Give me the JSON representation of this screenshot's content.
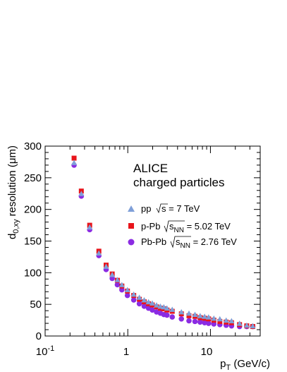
{
  "chart_data": {
    "type": "scatter",
    "xlabel": "p_T (GeV/c)",
    "ylabel": "d_0,xy resolution (μm)",
    "x_scale": "log",
    "xlim": [
      0.1,
      40
    ],
    "ylim": [
      0,
      300
    ],
    "x_ticks": [
      "10",
      "1",
      "10"
    ],
    "y_ticks": [
      "0",
      "50",
      "100",
      "150",
      "200",
      "250",
      "300"
    ],
    "annotation_title": "ALICE",
    "annotation_subtitle": "charged particles",
    "series": [
      {
        "name": "pp √s = 7 TeV",
        "color": "#7f9fd8",
        "marker": "triangle",
        "points": [
          [
            0.224,
            274
          ],
          [
            0.274,
            225
          ],
          [
            0.346,
            172
          ],
          [
            0.447,
            131
          ],
          [
            0.547,
            110
          ],
          [
            0.648,
            97
          ],
          [
            0.748,
            89
          ],
          [
            0.848,
            81
          ],
          [
            0.99,
            73
          ],
          [
            1.18,
            66
          ],
          [
            1.38,
            61
          ],
          [
            1.58,
            57
          ],
          [
            1.78,
            54
          ],
          [
            1.98,
            52
          ],
          [
            2.23,
            49
          ],
          [
            2.48,
            47
          ],
          [
            2.73,
            46
          ],
          [
            2.98,
            44
          ],
          [
            3.45,
            42
          ],
          [
            4.45,
            38
          ],
          [
            5.5,
            36
          ],
          [
            6.5,
            34
          ],
          [
            7.5,
            32
          ],
          [
            8.5,
            31
          ],
          [
            9.5,
            30
          ],
          [
            11.0,
            28
          ],
          [
            13.0,
            27
          ],
          [
            15.5,
            25
          ],
          [
            18.0,
            24
          ],
          [
            22.5,
            20
          ],
          [
            27.5,
            17
          ],
          [
            32.5,
            16
          ]
        ]
      },
      {
        "name": "p-Pb √s_NN = 5.02 TeV",
        "color": "#e8141b",
        "marker": "square",
        "points": [
          [
            0.224,
            281
          ],
          [
            0.274,
            229
          ],
          [
            0.346,
            175
          ],
          [
            0.447,
            134
          ],
          [
            0.547,
            112
          ],
          [
            0.648,
            98
          ],
          [
            0.748,
            88
          ],
          [
            0.848,
            79
          ],
          [
            0.99,
            71
          ],
          [
            1.18,
            64
          ],
          [
            1.38,
            58
          ],
          [
            1.58,
            54
          ],
          [
            1.78,
            51
          ],
          [
            1.98,
            49
          ],
          [
            2.23,
            46
          ],
          [
            2.48,
            44
          ],
          [
            2.73,
            43
          ],
          [
            2.98,
            41
          ],
          [
            3.45,
            39
          ],
          [
            4.45,
            35
          ],
          [
            5.5,
            32
          ],
          [
            6.5,
            31
          ],
          [
            7.5,
            29
          ],
          [
            8.5,
            28
          ],
          [
            9.5,
            27
          ],
          [
            11.0,
            25
          ],
          [
            13.0,
            23
          ],
          [
            15.5,
            22
          ],
          [
            18.0,
            21
          ],
          [
            22.5,
            18
          ],
          [
            27.5,
            16
          ],
          [
            32.5,
            15
          ]
        ]
      },
      {
        "name": "Pb-Pb √s_NN = 2.76 TeV",
        "color": "#8b2be2",
        "marker": "circle",
        "points": [
          [
            0.224,
            270
          ],
          [
            0.274,
            221
          ],
          [
            0.346,
            168
          ],
          [
            0.447,
            127
          ],
          [
            0.547,
            105
          ],
          [
            0.648,
            91
          ],
          [
            0.748,
            81
          ],
          [
            0.848,
            73
          ],
          [
            0.99,
            64
          ],
          [
            1.18,
            57
          ],
          [
            1.38,
            51
          ],
          [
            1.58,
            47
          ],
          [
            1.78,
            44
          ],
          [
            1.98,
            41
          ],
          [
            2.23,
            38
          ],
          [
            2.48,
            36
          ],
          [
            2.73,
            34
          ],
          [
            2.98,
            33
          ],
          [
            3.45,
            30
          ],
          [
            4.45,
            27
          ],
          [
            5.5,
            24
          ],
          [
            6.5,
            23
          ],
          [
            7.5,
            22
          ],
          [
            8.5,
            21
          ],
          [
            9.5,
            20
          ],
          [
            11.0,
            19
          ],
          [
            13.0,
            18
          ],
          [
            15.5,
            17
          ],
          [
            18.0,
            16
          ],
          [
            22.5,
            15
          ],
          [
            27.5,
            15
          ],
          [
            32.5,
            15
          ]
        ]
      }
    ]
  },
  "text": {
    "ytitle_main": "d",
    "ytitle_sub": "0,xy",
    "ytitle_rest": " resolution (μm)",
    "xtitle_main": "p",
    "xtitle_sub": "T",
    "xtitle_rest": " (GeV/c)",
    "xtick_decade_base": "10",
    "xtick_decade_exp": "-1",
    "xtick_one": "1",
    "xtick_ten": "10",
    "legend_pp_sys": "pp",
    "legend_pp_energy": "s = 7 TeV",
    "legend_ppb_sys": "p-Pb",
    "legend_ppb_s": "s",
    "legend_ppb_sub": "NN",
    "legend_ppb_energy": " = 5.02 TeV",
    "legend_pbpb_sys": "Pb-Pb",
    "legend_pbpb_s": "s",
    "legend_pbpb_sub": "NN",
    "legend_pbpb_energy": " = 2.76 TeV"
  }
}
